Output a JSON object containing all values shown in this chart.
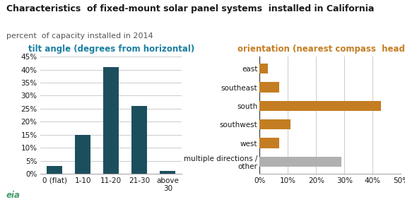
{
  "title_line1": "Characteristics  of fixed-mount solar panel systems  installed in California",
  "title_line2": "percent  of capacity installed in 2014",
  "title_color": "#1a1a1a",
  "subtitle_color": "#555555",
  "bar_categories": [
    "0 (flat)",
    "1-10",
    "11-20",
    "21-30",
    "above\n30"
  ],
  "bar_values": [
    3,
    15,
    41,
    26,
    1
  ],
  "bar_color": "#1c4f5e",
  "bar_title": "tilt angle (degrees from horizontal)",
  "bar_title_color": "#1a7fa0",
  "bar_yticks": [
    0,
    5,
    10,
    15,
    20,
    25,
    30,
    35,
    40,
    45
  ],
  "bar_ylim": [
    0,
    45
  ],
  "horz_categories": [
    "east",
    "southeast",
    "south",
    "southwest",
    "west",
    "multiple directions /\nother"
  ],
  "horz_values": [
    3,
    7,
    43,
    11,
    7,
    29
  ],
  "horz_colors": [
    "#c47d22",
    "#c47d22",
    "#c47d22",
    "#c47d22",
    "#c47d22",
    "#b0b0b0"
  ],
  "horz_title": "orientation (nearest compass  heading)",
  "horz_title_color": "#c47d22",
  "horz_xticks": [
    0,
    10,
    20,
    30,
    40,
    50
  ],
  "horz_xlim": [
    0,
    50
  ],
  "grid_color": "#cccccc",
  "bg_color": "#ffffff",
  "tick_label_color": "#1a1a1a",
  "tick_fontsize": 7.5,
  "subtitle_fontsize": 8,
  "title_fontsize": 9,
  "chart_title_fontsize": 8.5
}
